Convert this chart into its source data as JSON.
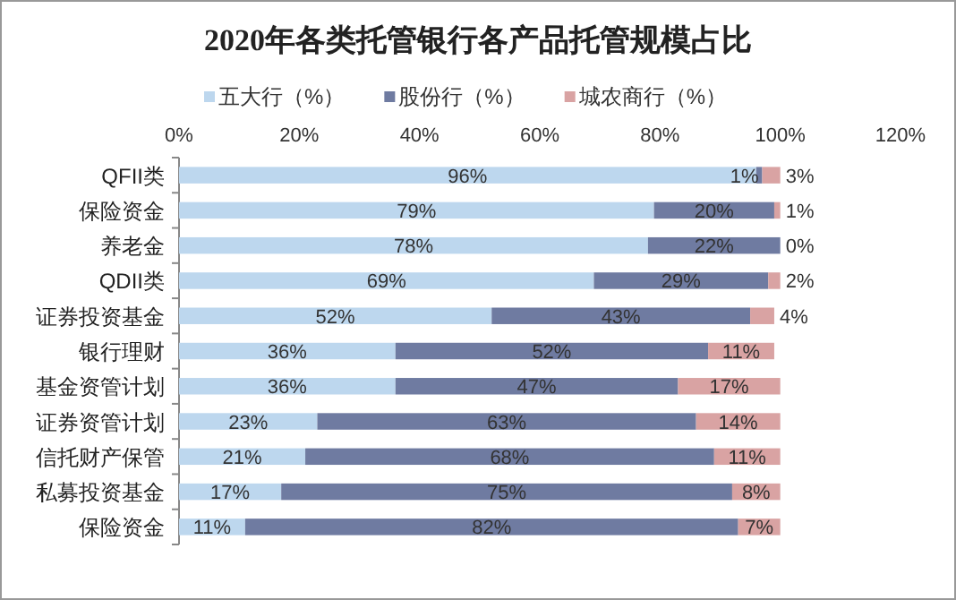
{
  "chart_data": {
    "type": "bar",
    "orientation": "horizontal",
    "stacked": true,
    "title": "2020年各类托管银行各产品托管规模占比",
    "legend": "top",
    "grid": false,
    "categories": [
      "QFII类",
      "保险资金",
      "养老金",
      "QDII类",
      "证券投资基金",
      "银行理财",
      "基金资管计划",
      "证券资管计划",
      "信托财产保管",
      "私募投资基金",
      "保险资金"
    ],
    "xlim": [
      0,
      120
    ],
    "xticks": [
      {
        "value": 0,
        "label": "0%"
      },
      {
        "value": 20,
        "label": "20%"
      },
      {
        "value": 40,
        "label": "40%"
      },
      {
        "value": 60,
        "label": "60%"
      },
      {
        "value": 80,
        "label": "80%"
      },
      {
        "value": 100,
        "label": "100%"
      },
      {
        "value": 120,
        "label": "120%"
      }
    ],
    "series": [
      {
        "name": "五大行（%）",
        "color": "#bdd7ee",
        "values": [
          96,
          79,
          78,
          69,
          52,
          36,
          36,
          23,
          21,
          17,
          11
        ],
        "value_labels": [
          "96%",
          "79%",
          "78%",
          "69%",
          "52%",
          "36%",
          "36%",
          "23%",
          "21%",
          "17%",
          "11%"
        ]
      },
      {
        "name": "股份行（%）",
        "color": "#6f7ba1",
        "values": [
          1,
          20,
          22,
          29,
          43,
          52,
          47,
          63,
          68,
          75,
          82
        ],
        "value_labels": [
          "1%",
          "20%",
          "22%",
          "29%",
          "43%",
          "52%",
          "47%",
          "63%",
          "68%",
          "75%",
          "82%"
        ]
      },
      {
        "name": "城农商行（%）",
        "color": "#d9a3a3",
        "values": [
          3,
          1,
          0,
          2,
          4,
          11,
          17,
          14,
          11,
          8,
          7
        ],
        "value_labels": [
          "3%",
          "1%",
          "0%",
          "2%",
          "4%",
          "11%",
          "17%",
          "14%",
          "11%",
          "8%",
          "7%"
        ]
      }
    ]
  }
}
